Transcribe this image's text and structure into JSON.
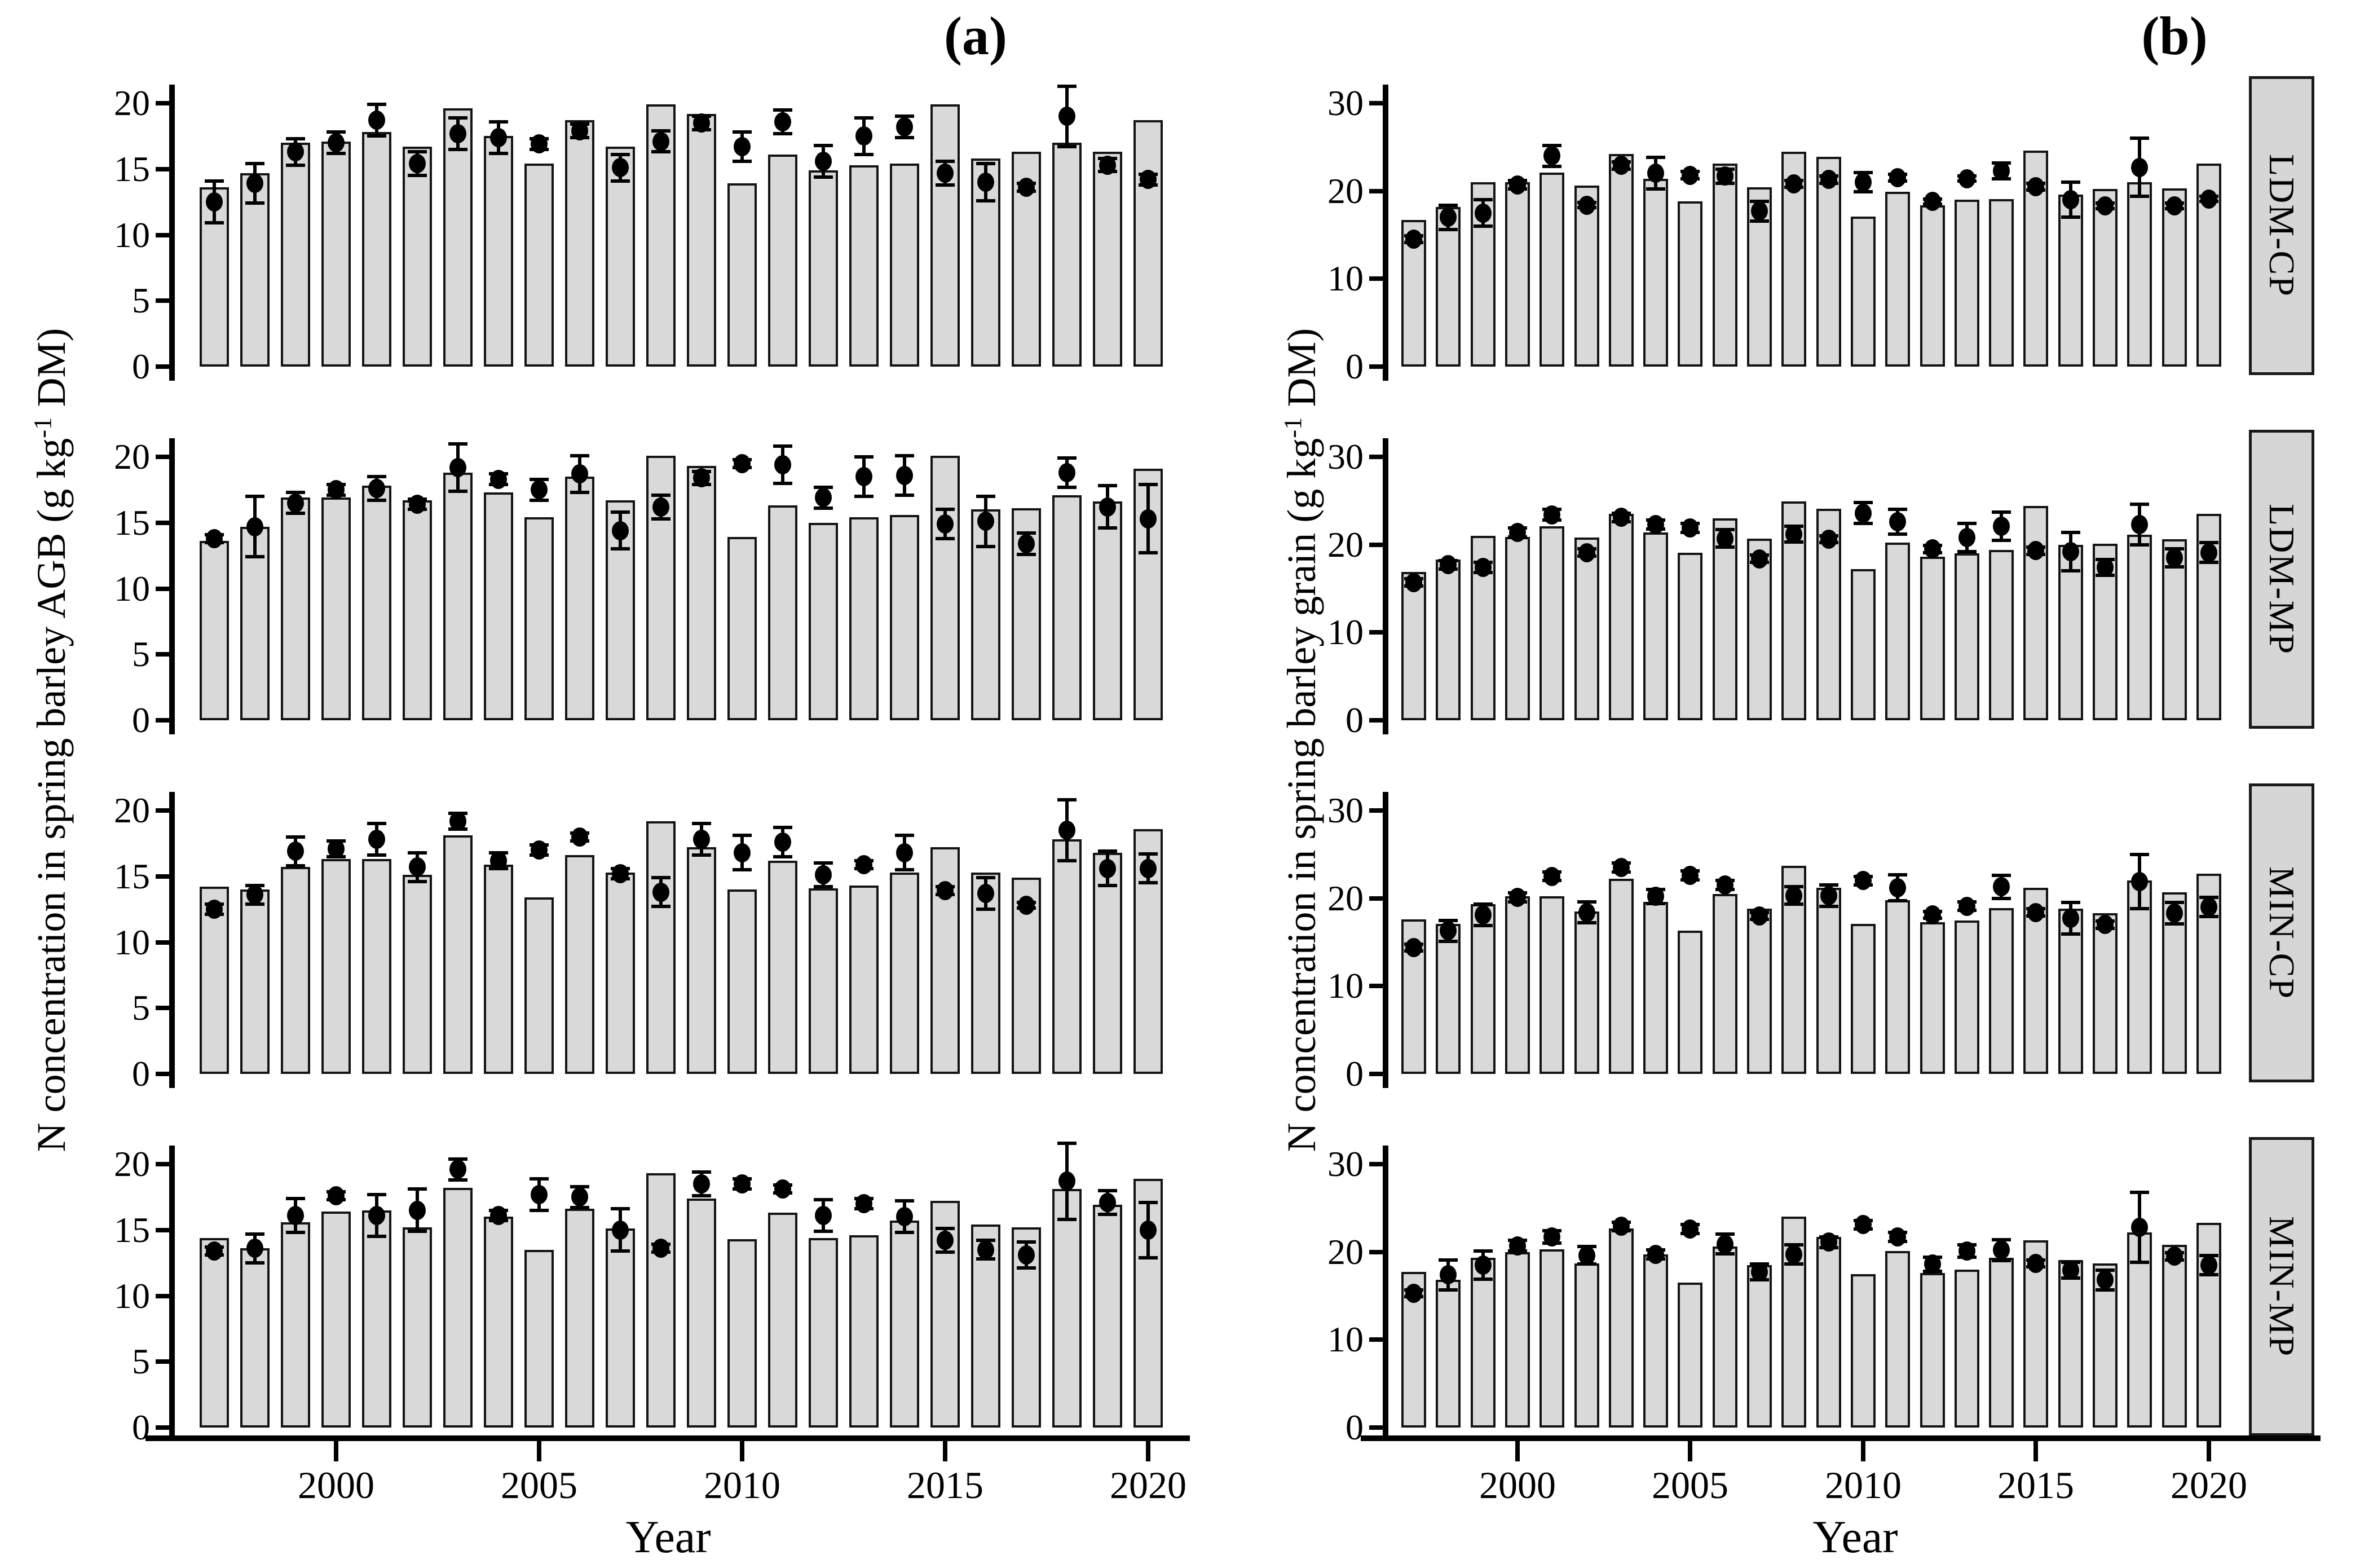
{
  "figure": {
    "panel_a_label": "(a)",
    "panel_b_label": "(b)",
    "xlabel": "Year",
    "ylabel_a": {
      "pre": "N concentration in spring barley AGB (g kg",
      "sup": "-1",
      "post": " DM)"
    },
    "ylabel_b": {
      "pre": "N concentration in spring barley grain (g kg",
      "sup": "-1",
      "post": " DM)"
    },
    "facets": [
      "LDM-CP",
      "LDM-MP",
      "MIN-CP",
      "MIN-MP"
    ],
    "x_ticks": [
      2000,
      2005,
      2010,
      2015,
      2020
    ],
    "yticks_a": [
      0,
      5,
      10,
      15,
      20
    ],
    "yticks_b": [
      0,
      10,
      20,
      30
    ],
    "colors": {
      "bar_fill": "#d9d9d9",
      "bar_edge": "#141414",
      "point": "#000000",
      "strip_fill": "#d6d6d6",
      "axis": "#000000"
    }
  },
  "chart_data": [
    {
      "type": "bar",
      "panel": "a",
      "row": 0,
      "facet": "LDM-CP",
      "xlabel": "Year",
      "ylabel": "N concentration in spring barley AGB (g kg-1 DM)",
      "ylim": [
        0,
        21.4
      ],
      "yticks": [
        0,
        5,
        10,
        15,
        20
      ],
      "legend": "none",
      "grid": false,
      "years": [
        1997,
        1998,
        1999,
        2000,
        2001,
        2002,
        2003,
        2004,
        2005,
        2006,
        2007,
        2008,
        2009,
        2010,
        2011,
        2012,
        2013,
        2014,
        2015,
        2016,
        2017,
        2018,
        2019,
        2020
      ],
      "bar_values": [
        13.6,
        14.7,
        17.0,
        17.1,
        17.8,
        16.7,
        19.6,
        17.5,
        15.4,
        18.7,
        16.7,
        19.9,
        19.2,
        13.9,
        16.1,
        14.9,
        15.3,
        15.4,
        19.9,
        15.8,
        16.3,
        17.0,
        16.3,
        18.7
      ],
      "point_values": [
        12.5,
        13.9,
        16.3,
        17.0,
        18.7,
        15.4,
        17.7,
        17.4,
        16.9,
        17.9,
        15.1,
        17.1,
        18.5,
        16.7,
        18.6,
        15.6,
        17.5,
        18.2,
        14.7,
        14.0,
        13.6,
        19.0,
        15.3,
        14.2
      ],
      "point_errors": [
        1.6,
        1.5,
        1.0,
        0.8,
        1.2,
        0.9,
        1.2,
        1.2,
        0.4,
        0.5,
        1.0,
        0.8,
        0.5,
        1.1,
        0.9,
        1.2,
        1.4,
        0.8,
        0.9,
        1.4,
        0.3,
        2.3,
        0.5,
        0.4
      ]
    },
    {
      "type": "bar",
      "panel": "a",
      "row": 1,
      "facet": "LDM-MP",
      "xlabel": "Year",
      "ylabel": "N concentration in spring barley AGB (g kg-1 DM)",
      "ylim": [
        0,
        21.4
      ],
      "yticks": [
        0,
        5,
        10,
        15,
        20
      ],
      "legend": "none",
      "grid": false,
      "years": [
        1997,
        1998,
        1999,
        2000,
        2001,
        2002,
        2003,
        2004,
        2005,
        2006,
        2007,
        2008,
        2009,
        2010,
        2011,
        2012,
        2013,
        2014,
        2015,
        2016,
        2017,
        2018,
        2019,
        2020
      ],
      "bar_values": [
        13.6,
        14.7,
        16.9,
        16.9,
        17.8,
        16.7,
        18.8,
        17.3,
        15.4,
        18.5,
        16.7,
        20.1,
        19.3,
        13.9,
        16.3,
        15.0,
        15.4,
        15.6,
        20.1,
        16.0,
        16.1,
        17.1,
        16.6,
        19.1
      ],
      "point_values": [
        13.8,
        14.7,
        16.5,
        17.5,
        17.6,
        16.4,
        19.2,
        18.3,
        17.5,
        18.7,
        14.4,
        16.2,
        18.4,
        19.5,
        19.4,
        16.9,
        18.5,
        18.6,
        14.9,
        15.1,
        13.4,
        18.8,
        16.2,
        15.3
      ],
      "point_errors": [
        0.3,
        2.3,
        0.8,
        0.4,
        0.9,
        0.4,
        1.8,
        0.4,
        0.8,
        1.4,
        1.4,
        0.9,
        0.5,
        0.3,
        1.4,
        0.8,
        1.5,
        1.5,
        1.1,
        1.9,
        0.8,
        1.1,
        1.6,
        2.6
      ]
    },
    {
      "type": "bar",
      "panel": "a",
      "row": 2,
      "facet": "MIN-CP",
      "xlabel": "Year",
      "ylabel": "N concentration in spring barley AGB (g kg-1 DM)",
      "ylim": [
        0,
        21.4
      ],
      "yticks": [
        0,
        5,
        10,
        15,
        20
      ],
      "legend": "none",
      "grid": false,
      "years": [
        1997,
        1998,
        1999,
        2000,
        2001,
        2002,
        2003,
        2004,
        2005,
        2006,
        2007,
        2008,
        2009,
        2010,
        2011,
        2012,
        2013,
        2014,
        2015,
        2016,
        2017,
        2018,
        2019,
        2020
      ],
      "bar_values": [
        14.2,
        14.0,
        15.7,
        16.3,
        16.3,
        15.1,
        18.1,
        15.9,
        13.4,
        16.6,
        15.3,
        19.2,
        17.2,
        14.0,
        16.2,
        14.1,
        14.3,
        15.3,
        17.2,
        15.3,
        14.9,
        17.8,
        16.8,
        18.6
      ],
      "point_values": [
        12.5,
        13.6,
        16.9,
        17.1,
        17.8,
        15.7,
        19.2,
        16.2,
        17.0,
        18.0,
        15.2,
        13.8,
        17.8,
        16.8,
        17.6,
        15.1,
        15.9,
        16.8,
        13.9,
        13.7,
        12.8,
        18.5,
        15.6,
        15.6
      ],
      "point_errors": [
        0.4,
        0.7,
        1.1,
        0.6,
        1.2,
        1.1,
        0.6,
        0.6,
        0.4,
        0.3,
        0.4,
        1.1,
        1.2,
        1.3,
        1.1,
        0.9,
        0.3,
        1.3,
        0.3,
        1.2,
        0.2,
        2.3,
        1.3,
        1.1
      ]
    },
    {
      "type": "bar",
      "panel": "a",
      "row": 3,
      "facet": "MIN-MP",
      "xlabel": "Year",
      "ylabel": "N concentration in spring barley AGB (g kg-1 DM)",
      "ylim": [
        0,
        21.4
      ],
      "yticks": [
        0,
        5,
        10,
        15,
        20
      ],
      "legend": "none",
      "grid": false,
      "years": [
        1997,
        1998,
        1999,
        2000,
        2001,
        2002,
        2003,
        2004,
        2005,
        2006,
        2007,
        2008,
        2009,
        2010,
        2011,
        2012,
        2013,
        2014,
        2015,
        2016,
        2017,
        2018,
        2019,
        2020
      ],
      "bar_values": [
        14.4,
        13.6,
        15.6,
        16.4,
        16.5,
        15.2,
        18.2,
        16.0,
        13.5,
        16.6,
        15.1,
        19.3,
        17.4,
        14.3,
        16.3,
        14.4,
        14.6,
        15.7,
        17.2,
        15.4,
        15.2,
        18.1,
        16.9,
        18.9
      ],
      "point_values": [
        13.4,
        13.6,
        16.1,
        17.6,
        16.1,
        16.5,
        19.6,
        16.1,
        17.7,
        17.5,
        15.0,
        13.6,
        18.5,
        18.5,
        18.1,
        16.1,
        17.0,
        16.0,
        14.2,
        13.5,
        13.1,
        18.7,
        17.1,
        15.0
      ],
      "point_errors": [
        0.3,
        1.1,
        1.3,
        0.3,
        1.6,
        1.6,
        0.8,
        0.4,
        1.2,
        0.8,
        1.6,
        0.3,
        0.9,
        0.4,
        0.3,
        1.2,
        0.4,
        1.2,
        0.9,
        0.7,
        1.0,
        2.9,
        0.9,
        2.1
      ]
    },
    {
      "type": "bar",
      "panel": "b",
      "row": 0,
      "facet": "LDM-CP",
      "xlabel": "Year",
      "ylabel": "N concentration in spring barley grain (g kg-1 DM)",
      "ylim": [
        0,
        32.1
      ],
      "yticks": [
        0,
        10,
        20,
        30
      ],
      "legend": "none",
      "grid": false,
      "years": [
        1997,
        1998,
        1999,
        2000,
        2001,
        2002,
        2003,
        2004,
        2005,
        2006,
        2007,
        2008,
        2009,
        2010,
        2011,
        2012,
        2013,
        2014,
        2015,
        2016,
        2017,
        2018,
        2019,
        2020
      ],
      "bar_values": [
        16.7,
        18.2,
        21.0,
        21.0,
        22.1,
        20.6,
        24.2,
        21.4,
        18.8,
        23.1,
        20.4,
        24.5,
        23.9,
        17.1,
        19.9,
        18.4,
        19.0,
        19.1,
        24.6,
        19.6,
        20.2,
        21.0,
        20.3,
        23.1
      ],
      "point_values": [
        14.5,
        17.0,
        17.5,
        20.7,
        24.0,
        18.4,
        22.9,
        22.0,
        21.8,
        21.7,
        17.7,
        20.8,
        21.3,
        21.0,
        21.5,
        18.8,
        21.4,
        22.3,
        20.5,
        19.0,
        18.3,
        22.7,
        18.3,
        19.1
      ],
      "point_errors": [
        0.4,
        1.4,
        1.5,
        0.5,
        1.2,
        0.3,
        0.4,
        1.8,
        0.4,
        0.8,
        1.1,
        0.4,
        0.4,
        1.1,
        0.4,
        0.3,
        0.3,
        0.9,
        0.4,
        2.0,
        0.3,
        3.3,
        0.3,
        0.3
      ]
    },
    {
      "type": "bar",
      "panel": "b",
      "row": 1,
      "facet": "LDM-MP",
      "xlabel": "Year",
      "ylabel": "N concentration in spring barley grain (g kg-1 DM)",
      "ylim": [
        0,
        32.1
      ],
      "yticks": [
        0,
        10,
        20,
        30
      ],
      "legend": "none",
      "grid": false,
      "years": [
        1997,
        1998,
        1999,
        2000,
        2001,
        2002,
        2003,
        2004,
        2005,
        2006,
        2007,
        2008,
        2009,
        2010,
        2011,
        2012,
        2013,
        2014,
        2015,
        2016,
        2017,
        2018,
        2019,
        2020
      ],
      "bar_values": [
        16.9,
        18.3,
        21.0,
        20.9,
        22.1,
        20.8,
        23.5,
        21.4,
        19.1,
        23.0,
        20.7,
        24.9,
        24.1,
        17.2,
        20.2,
        18.6,
        19.0,
        19.4,
        24.4,
        20.0,
        20.1,
        21.1,
        20.6,
        23.5
      ],
      "point_values": [
        15.7,
        17.7,
        17.4,
        21.4,
        23.4,
        19.1,
        23.1,
        22.3,
        21.9,
        20.7,
        18.4,
        21.2,
        20.6,
        23.6,
        22.6,
        19.5,
        20.8,
        22.1,
        19.3,
        19.2,
        17.4,
        22.3,
        18.5,
        19.1
      ],
      "point_errors": [
        0.4,
        0.5,
        0.6,
        0.5,
        0.6,
        0.4,
        0.5,
        0.5,
        0.5,
        1.0,
        0.4,
        0.9,
        0.4,
        1.2,
        1.4,
        0.4,
        1.6,
        1.6,
        0.4,
        2.2,
        0.9,
        2.3,
        1.0,
        1.1
      ]
    },
    {
      "type": "bar",
      "panel": "b",
      "row": 2,
      "facet": "MIN-CP",
      "xlabel": "Year",
      "ylabel": "N concentration in spring barley grain (g kg-1 DM)",
      "ylim": [
        0,
        32.1
      ],
      "yticks": [
        0,
        10,
        20,
        30
      ],
      "legend": "none",
      "grid": false,
      "years": [
        1997,
        1998,
        1999,
        2000,
        2001,
        2002,
        2003,
        2004,
        2005,
        2006,
        2007,
        2008,
        2009,
        2010,
        2011,
        2012,
        2013,
        2014,
        2015,
        2016,
        2017,
        2018,
        2019,
        2020
      ],
      "bar_values": [
        17.6,
        17.1,
        19.3,
        20.2,
        20.2,
        18.5,
        22.2,
        19.6,
        16.3,
        20.5,
        18.8,
        23.7,
        21.2,
        17.1,
        19.8,
        17.3,
        17.5,
        18.9,
        21.2,
        18.8,
        18.3,
        22.0,
        20.7,
        22.8
      ],
      "point_values": [
        14.4,
        16.3,
        18.1,
        20.1,
        22.5,
        18.4,
        23.5,
        20.2,
        22.6,
        21.5,
        18.0,
        20.3,
        20.3,
        22.0,
        21.2,
        18.1,
        19.1,
        21.3,
        18.4,
        17.7,
        17.0,
        21.9,
        18.3,
        19.0
      ],
      "point_errors": [
        0.4,
        1.2,
        1.2,
        0.5,
        0.5,
        1.2,
        0.5,
        0.8,
        0.5,
        0.5,
        0.4,
        1.0,
        1.2,
        0.5,
        1.5,
        0.4,
        0.5,
        1.3,
        0.4,
        1.8,
        0.4,
        3.1,
        1.2,
        1.1
      ]
    },
    {
      "type": "bar",
      "panel": "b",
      "row": 3,
      "facet": "MIN-MP",
      "xlabel": "Year",
      "ylabel": "N concentration in spring barley grain (g kg-1 DM)",
      "ylim": [
        0,
        32.1
      ],
      "yticks": [
        0,
        10,
        20,
        30
      ],
      "legend": "none",
      "grid": false,
      "years": [
        1997,
        1998,
        1999,
        2000,
        2001,
        2002,
        2003,
        2004,
        2005,
        2006,
        2007,
        2008,
        2009,
        2010,
        2011,
        2012,
        2013,
        2014,
        2015,
        2016,
        2017,
        2018,
        2019,
        2020
      ],
      "bar_values": [
        17.7,
        16.8,
        19.3,
        20.0,
        20.3,
        18.7,
        22.7,
        19.7,
        16.5,
        20.6,
        18.5,
        24.0,
        21.7,
        17.5,
        20.1,
        17.6,
        18.0,
        19.3,
        21.3,
        19.1,
        18.7,
        22.2,
        20.8,
        23.3
      ],
      "point_values": [
        15.3,
        17.4,
        18.5,
        20.7,
        21.7,
        19.6,
        22.9,
        19.7,
        22.6,
        20.9,
        17.7,
        19.7,
        21.1,
        23.1,
        21.7,
        18.6,
        20.1,
        20.2,
        18.7,
        17.9,
        16.8,
        22.8,
        19.5,
        18.5
      ],
      "point_errors": [
        0.4,
        1.7,
        1.6,
        0.6,
        0.7,
        1.0,
        0.5,
        0.5,
        0.5,
        1.1,
        0.9,
        1.1,
        0.6,
        0.5,
        0.5,
        0.8,
        0.7,
        1.2,
        0.4,
        0.9,
        1.1,
        4.0,
        0.4,
        1.1
      ]
    }
  ]
}
